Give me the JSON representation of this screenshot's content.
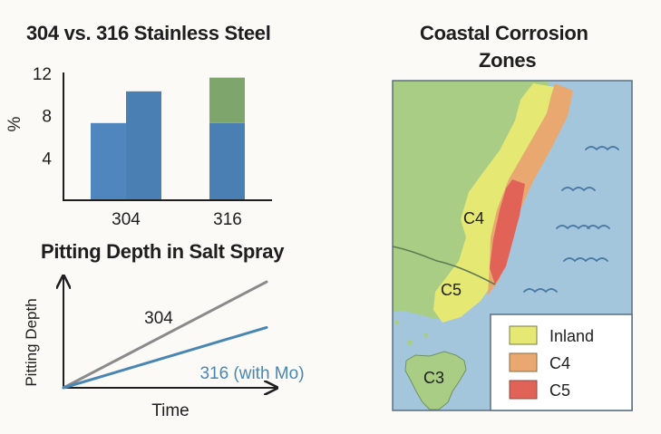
{
  "chart_data": [
    {
      "type": "bar",
      "title": "304 vs. 316 Stainless Steel",
      "ylabel": "%",
      "ylim": [
        0,
        12
      ],
      "yticks": [
        4,
        8,
        12
      ],
      "categories": [
        "304",
        "316"
      ],
      "series": [
        {
          "values": [
            7.3,
            7.3
          ],
          "color": "#4f86bd"
        },
        {
          "values": [
            10.3,
            4.3
          ],
          "color": "#4a7fb3"
        }
      ],
      "grouping": [
        "side-by-side",
        "stacked"
      ],
      "stack_top_color": "#7ea66c",
      "grid": false
    },
    {
      "type": "line",
      "title": "Pitting Depth in Salt Spray",
      "xlabel": "Time",
      "ylabel": "Pitting Depth",
      "axis_ticks": false,
      "x": [
        0,
        1
      ],
      "series": [
        {
          "name": "304",
          "values": [
            0,
            0.79
          ],
          "color": "#8a8a8a"
        },
        {
          "name": "316 (with Mo)",
          "values": [
            0,
            0.45
          ],
          "color": "#4a86b4"
        }
      ],
      "ylim": [
        0,
        1
      ]
    }
  ],
  "map": {
    "title_line1": "Coastal Corrosion",
    "title_line2": "Zones",
    "zone_labels": [
      "C4",
      "C5",
      "C3"
    ],
    "legend": [
      {
        "label": "Inland",
        "color": "#e6e874"
      },
      {
        "label": "C4",
        "color": "#e8a870"
      },
      {
        "label": "C5",
        "color": "#e16358"
      }
    ],
    "colors": {
      "sea": "#a4c6dc",
      "land": "#a9cd84",
      "wave": "#4a7aa5"
    }
  }
}
